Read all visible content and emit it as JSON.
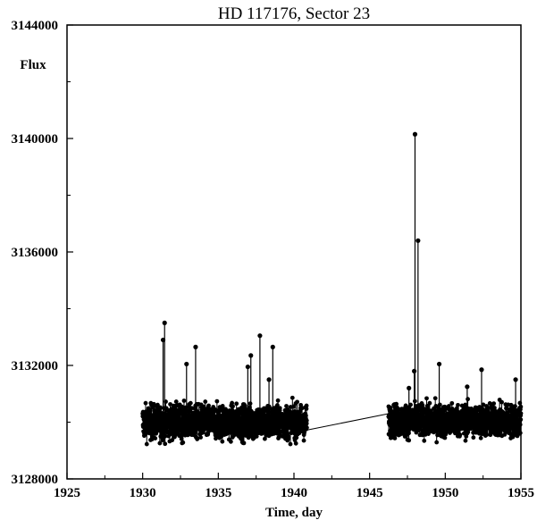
{
  "chart_data": {
    "type": "scatter",
    "title": "HD 117176, Sector 23",
    "xlabel": "Time, day",
    "ylabel": "Flux",
    "xlim": [
      1925,
      1955
    ],
    "ylim": [
      3128000,
      3144000
    ],
    "xticks": [
      "1925",
      "1930",
      "1935",
      "1940",
      "1945",
      "1950",
      "1955"
    ],
    "xtick_values": [
      1925,
      1930,
      1935,
      1940,
      1945,
      1950,
      1955
    ],
    "yticks": [
      "3128000",
      "3132000",
      "3136000",
      "3140000",
      "3144000"
    ],
    "ytick_values": [
      3128000,
      3132000,
      3136000,
      3140000,
      3144000
    ],
    "grid": false,
    "point_color": "#000000",
    "connected": true,
    "segments": [
      {
        "x_start": 1930.0,
        "x_end": 1940.85,
        "mean": 3130000,
        "spread": 650,
        "count": 1600
      },
      {
        "x_start": 1946.25,
        "x_end": 1955.0,
        "mean": 3130050,
        "spread": 620,
        "count": 1300
      }
    ],
    "gap_line": [
      [
        1940.85,
        3129720
      ],
      [
        1946.25,
        3130300
      ]
    ],
    "spikes": [
      {
        "x": 1931.35,
        "y": 3132900
      },
      {
        "x": 1931.45,
        "y": 3133500
      },
      {
        "x": 1932.9,
        "y": 3132050
      },
      {
        "x": 1933.5,
        "y": 3132650
      },
      {
        "x": 1936.95,
        "y": 3131950
      },
      {
        "x": 1937.15,
        "y": 3132350
      },
      {
        "x": 1937.75,
        "y": 3133050
      },
      {
        "x": 1938.35,
        "y": 3131500
      },
      {
        "x": 1938.6,
        "y": 3132650
      },
      {
        "x": 1947.6,
        "y": 3131200
      },
      {
        "x": 1947.95,
        "y": 3131800
      },
      {
        "x": 1948.0,
        "y": 3140150
      },
      {
        "x": 1948.2,
        "y": 3136400
      },
      {
        "x": 1949.6,
        "y": 3132050
      },
      {
        "x": 1951.45,
        "y": 3131250
      },
      {
        "x": 1952.4,
        "y": 3131850
      },
      {
        "x": 1954.65,
        "y": 3131500
      }
    ]
  }
}
